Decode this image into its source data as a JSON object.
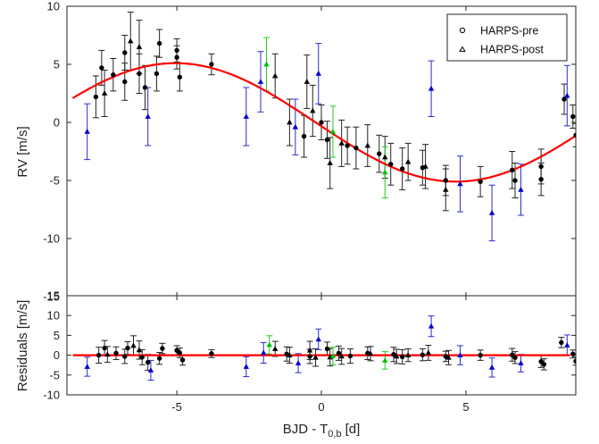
{
  "chart_data": [
    {
      "type": "scatter",
      "title": "",
      "xlabel": "BJD - T",
      "xlabel_sub": "0,b",
      "xlabel_unit": "[d]",
      "ylabel": "RV [m/s]",
      "xlim": [
        -8.8,
        8.8
      ],
      "ylim": [
        -15,
        10
      ],
      "xticks": [
        -5,
        0,
        5
      ],
      "yticks": [
        10,
        5,
        0,
        -5,
        -10,
        -15
      ],
      "grid": false,
      "legend_position": "top-right",
      "legend": [
        {
          "label": "HARPS-pre",
          "marker": "circle"
        },
        {
          "label": "HARPS-post",
          "marker": "triangle"
        }
      ],
      "colors": {
        "model": "#ff0000",
        "black": "#000000",
        "blue": "#0000cc",
        "green": "#00c000",
        "errorbar_black": "#222222",
        "errorbar_blue": "#2b2bcc",
        "errorbar_green": "#22cc22"
      },
      "model": {
        "name": "",
        "amplitude": 5.1,
        "phase_zero": -0.2,
        "period": 19.4
      },
      "series": [
        {
          "instrument": "HARPS-pre",
          "color": "black",
          "marker": "circle",
          "points": [
            {
              "x": -7.8,
              "y": 2.2,
              "err": 1.8
            },
            {
              "x": -7.6,
              "y": 4.7,
              "err": 1.5
            },
            {
              "x": -7.2,
              "y": 4.1,
              "err": 1.4
            },
            {
              "x": -6.8,
              "y": 3.5,
              "err": 1.6
            },
            {
              "x": -6.8,
              "y": 6.0,
              "err": 1.5
            },
            {
              "x": -6.3,
              "y": 4.2,
              "err": 1.7
            },
            {
              "x": -6.1,
              "y": 3.0,
              "err": 1.9
            },
            {
              "x": -5.7,
              "y": 4.2,
              "err": 1.5
            },
            {
              "x": -5.6,
              "y": 6.8,
              "err": 1.2
            },
            {
              "x": -5.0,
              "y": 6.2,
              "err": 1.0
            },
            {
              "x": -5.0,
              "y": 5.6,
              "err": 1.0
            },
            {
              "x": -4.9,
              "y": 3.9,
              "err": 1.2
            },
            {
              "x": -3.8,
              "y": 5.0,
              "err": 0.9
            },
            {
              "x": -0.6,
              "y": -1.2,
              "err": 1.8
            },
            {
              "x": 0.0,
              "y": 0.0,
              "err": 1.5
            },
            {
              "x": 0.2,
              "y": -1.5,
              "err": 1.6
            },
            {
              "x": 0.9,
              "y": -2.0,
              "err": 1.6
            },
            {
              "x": 1.2,
              "y": -2.2,
              "err": 1.8
            },
            {
              "x": 2.0,
              "y": -2.7,
              "err": 1.6
            },
            {
              "x": 2.4,
              "y": -3.6,
              "err": 1.8
            },
            {
              "x": 2.8,
              "y": -4.0,
              "err": 1.8
            },
            {
              "x": 3.5,
              "y": -3.9,
              "err": 1.5
            },
            {
              "x": 4.3,
              "y": -5.0,
              "err": 1.3
            },
            {
              "x": 5.5,
              "y": -5.1,
              "err": 1.3
            },
            {
              "x": 6.6,
              "y": -4.1,
              "err": 1.6
            },
            {
              "x": 6.7,
              "y": -5.0,
              "err": 1.5
            },
            {
              "x": 7.6,
              "y": -3.8,
              "err": 1.5
            },
            {
              "x": 7.6,
              "y": -4.9,
              "err": 1.4
            },
            {
              "x": 8.4,
              "y": 2.0,
              "err": 1.3
            },
            {
              "x": 8.7,
              "y": 0.5,
              "err": 1.0
            },
            {
              "x": 8.8,
              "y": -1.1,
              "err": 1.0
            }
          ]
        },
        {
          "instrument": "HARPS-post",
          "color": "black",
          "marker": "triangle",
          "points": [
            {
              "x": -7.5,
              "y": 2.5,
              "err": 2.0
            },
            {
              "x": -6.6,
              "y": 7.0,
              "err": 2.5
            },
            {
              "x": -6.3,
              "y": 6.5,
              "err": 2.3
            },
            {
              "x": -1.6,
              "y": 4.0,
              "err": 1.9
            },
            {
              "x": -1.1,
              "y": 0.0,
              "err": 2.0
            },
            {
              "x": -0.5,
              "y": 3.5,
              "err": 2.3
            },
            {
              "x": -0.3,
              "y": 1.0,
              "err": 2.2
            },
            {
              "x": 0.3,
              "y": -3.5,
              "err": 2.2
            },
            {
              "x": 0.7,
              "y": -1.8,
              "err": 2.0
            },
            {
              "x": 1.6,
              "y": -2.0,
              "err": 1.8
            },
            {
              "x": 2.2,
              "y": -3.0,
              "err": 1.8
            },
            {
              "x": 3.0,
              "y": -3.4,
              "err": 1.6
            },
            {
              "x": 3.6,
              "y": -3.8,
              "err": 1.9
            },
            {
              "x": 4.3,
              "y": -5.8,
              "err": 1.8
            }
          ]
        },
        {
          "instrument": "HARPS-post",
          "color": "blue",
          "marker": "triangle",
          "points": [
            {
              "x": -8.1,
              "y": -0.8,
              "err": 2.4
            },
            {
              "x": -6.0,
              "y": 0.5,
              "err": 2.5
            },
            {
              "x": -2.6,
              "y": 0.5,
              "err": 2.5
            },
            {
              "x": -2.1,
              "y": 3.5,
              "err": 2.6
            },
            {
              "x": -0.9,
              "y": -0.4,
              "err": 2.4
            },
            {
              "x": -0.1,
              "y": 4.2,
              "err": 2.6
            },
            {
              "x": 3.8,
              "y": 2.9,
              "err": 2.4
            },
            {
              "x": 4.8,
              "y": -5.3,
              "err": 2.4
            },
            {
              "x": 5.9,
              "y": -7.8,
              "err": 2.4
            },
            {
              "x": 6.9,
              "y": -5.8,
              "err": 2.2
            },
            {
              "x": 8.5,
              "y": 2.3,
              "err": 2.6
            }
          ]
        },
        {
          "instrument": "HARPS-post",
          "color": "green",
          "marker": "triangle",
          "points": [
            {
              "x": -1.9,
              "y": 5.0,
              "err": 2.3
            },
            {
              "x": 0.4,
              "y": -0.8,
              "err": 2.2
            },
            {
              "x": 2.2,
              "y": -4.3,
              "err": 2.2
            }
          ]
        }
      ]
    },
    {
      "type": "scatter",
      "title": "",
      "xlabel": "BJD - T",
      "ylabel": "Residuals [m/s]",
      "xlim": [
        -8.8,
        8.8
      ],
      "ylim": [
        -10,
        15
      ],
      "xticks": [
        -5,
        0,
        5
      ],
      "yticks": [
        15,
        10,
        5,
        0,
        -5,
        -10
      ],
      "grid": false,
      "model": {
        "name": "",
        "y": 0
      },
      "series": [
        {
          "instrument": "HARPS-pre",
          "color": "black",
          "marker": "circle",
          "points": [
            {
              "x": -7.7,
              "y": 0.0,
              "err": 2.0
            },
            {
              "x": -7.5,
              "y": 1.8,
              "err": 1.9
            },
            {
              "x": -7.1,
              "y": 0.5,
              "err": 1.6
            },
            {
              "x": -6.8,
              "y": -0.3,
              "err": 1.8
            },
            {
              "x": -6.7,
              "y": 1.8,
              "err": 1.6
            },
            {
              "x": -6.2,
              "y": -0.5,
              "err": 1.9
            },
            {
              "x": -6.0,
              "y": -1.8,
              "err": 2.0
            },
            {
              "x": -5.6,
              "y": -0.8,
              "err": 1.5
            },
            {
              "x": -5.5,
              "y": 1.7,
              "err": 1.3
            },
            {
              "x": -5.0,
              "y": 1.2,
              "err": 1.2
            },
            {
              "x": -4.9,
              "y": 0.6,
              "err": 1.2
            },
            {
              "x": -4.8,
              "y": -1.2,
              "err": 1.3
            },
            {
              "x": -3.8,
              "y": 0.4,
              "err": 1.0
            },
            {
              "x": -1.2,
              "y": 0.3,
              "err": 1.8
            },
            {
              "x": -0.4,
              "y": -0.3,
              "err": 1.8
            },
            {
              "x": 0.2,
              "y": 1.6,
              "err": 1.7
            },
            {
              "x": 0.6,
              "y": 0.5,
              "err": 1.8
            },
            {
              "x": 1.0,
              "y": -0.2,
              "err": 1.8
            },
            {
              "x": 1.6,
              "y": 0.5,
              "err": 1.6
            },
            {
              "x": 2.5,
              "y": 0.2,
              "err": 1.8
            },
            {
              "x": 2.8,
              "y": -0.4,
              "err": 1.8
            },
            {
              "x": 3.5,
              "y": 0.1,
              "err": 1.5
            },
            {
              "x": 4.3,
              "y": -0.3,
              "err": 1.3
            },
            {
              "x": 5.5,
              "y": 0.0,
              "err": 1.3
            },
            {
              "x": 6.6,
              "y": 0.1,
              "err": 1.6
            },
            {
              "x": 6.7,
              "y": -0.6,
              "err": 1.5
            },
            {
              "x": 7.6,
              "y": -1.6,
              "err": 1.5
            },
            {
              "x": 7.7,
              "y": -2.3,
              "err": 1.4
            },
            {
              "x": 8.3,
              "y": 3.2,
              "err": 1.3
            },
            {
              "x": 8.7,
              "y": 0.3,
              "err": 1.0
            },
            {
              "x": 8.8,
              "y": -1.5,
              "err": 1.0
            }
          ]
        },
        {
          "instrument": "HARPS-post",
          "color": "black",
          "marker": "triangle",
          "points": [
            {
              "x": -7.4,
              "y": 0.2,
              "err": 2.0
            },
            {
              "x": -6.5,
              "y": 2.4,
              "err": 2.5
            },
            {
              "x": -6.3,
              "y": 1.3,
              "err": 2.3
            },
            {
              "x": -1.6,
              "y": 1.6,
              "err": 1.9
            },
            {
              "x": -1.1,
              "y": 0.0,
              "err": 2.0
            },
            {
              "x": -0.4,
              "y": 1.2,
              "err": 2.3
            },
            {
              "x": -0.2,
              "y": -0.6,
              "err": 2.2
            },
            {
              "x": 0.3,
              "y": -0.5,
              "err": 2.2
            },
            {
              "x": 0.7,
              "y": -0.3,
              "err": 2.0
            },
            {
              "x": 1.7,
              "y": 0.4,
              "err": 1.8
            },
            {
              "x": 2.6,
              "y": -0.3,
              "err": 1.8
            },
            {
              "x": 3.0,
              "y": 0.0,
              "err": 1.6
            },
            {
              "x": 3.7,
              "y": 0.6,
              "err": 1.9
            },
            {
              "x": 4.4,
              "y": -0.6,
              "err": 1.8
            }
          ]
        },
        {
          "instrument": "HARPS-post",
          "color": "blue",
          "marker": "triangle",
          "points": [
            {
              "x": -8.1,
              "y": -2.9,
              "err": 2.4
            },
            {
              "x": -5.9,
              "y": -3.8,
              "err": 2.5
            },
            {
              "x": -2.6,
              "y": -2.9,
              "err": 2.5
            },
            {
              "x": -2.0,
              "y": 0.6,
              "err": 2.6
            },
            {
              "x": -0.8,
              "y": -2.0,
              "err": 2.4
            },
            {
              "x": -0.1,
              "y": 4.0,
              "err": 2.6
            },
            {
              "x": 3.8,
              "y": 7.3,
              "err": 2.6
            },
            {
              "x": 4.8,
              "y": 0.0,
              "err": 2.4
            },
            {
              "x": 5.9,
              "y": -3.1,
              "err": 2.4
            },
            {
              "x": 6.9,
              "y": -2.0,
              "err": 2.2
            },
            {
              "x": 8.5,
              "y": 2.5,
              "err": 2.6
            }
          ]
        },
        {
          "instrument": "HARPS-post",
          "color": "green",
          "marker": "triangle",
          "points": [
            {
              "x": -1.8,
              "y": 2.6,
              "err": 2.3
            },
            {
              "x": 0.4,
              "y": -0.2,
              "err": 2.2
            },
            {
              "x": 2.2,
              "y": -1.3,
              "err": 2.2
            }
          ]
        }
      ]
    }
  ]
}
